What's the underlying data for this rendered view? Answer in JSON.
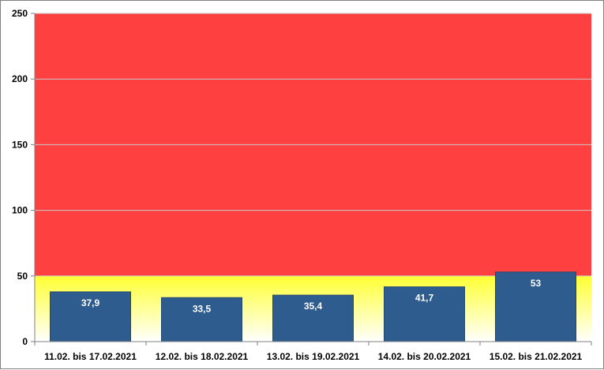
{
  "chart_data": {
    "type": "bar",
    "categories": [
      "11.02. bis 17.02.2021",
      "12.02. bis 18.02.2021",
      "13.02. bis 19.02.2021",
      "14.02. bis 20.02.2021",
      "15.02. bis 21.02.2021"
    ],
    "series": [
      {
        "values": [
          37.9,
          33.5,
          35.4,
          41.7,
          53
        ]
      }
    ],
    "data_labels": [
      "37,9",
      "33,5",
      "35,4",
      "41,7",
      "53"
    ],
    "title": "",
    "xlabel": "",
    "ylabel": "",
    "ylim": [
      0,
      250
    ],
    "yticks": [
      0,
      50,
      100,
      150,
      200,
      250
    ],
    "background_bands": [
      {
        "from": 0,
        "to": 50,
        "color_top": "#ffff33",
        "color_bottom": "#ffffff"
      },
      {
        "from": 50,
        "to": 250,
        "color": "#ff4040"
      }
    ],
    "bar_color": "#2e5c8f",
    "grid": true,
    "legend": "none"
  }
}
